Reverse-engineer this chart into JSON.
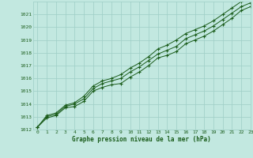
{
  "title": "Graphe pression niveau de la mer (hPa)",
  "background_color": "#c2e8e0",
  "grid_color": "#9ecec6",
  "line_color": "#1a5c1a",
  "text_color": "#1a5c1a",
  "xlim": [
    -0.5,
    23
  ],
  "ylim": [
    1012,
    1022
  ],
  "xticks": [
    0,
    1,
    2,
    3,
    4,
    5,
    6,
    7,
    8,
    9,
    10,
    11,
    12,
    13,
    14,
    15,
    16,
    17,
    18,
    19,
    20,
    21,
    22,
    23
  ],
  "yticks": [
    1012,
    1013,
    1014,
    1015,
    1016,
    1017,
    1018,
    1019,
    1020,
    1021
  ],
  "series": [
    [
      1012.2,
      1012.9,
      1013.1,
      1013.7,
      1013.8,
      1014.2,
      1015.0,
      1015.3,
      1015.5,
      1015.6,
      1016.1,
      1016.5,
      1017.0,
      1017.6,
      1017.8,
      1018.1,
      1018.7,
      1019.0,
      1019.3,
      1019.7,
      1020.2,
      1020.7,
      1021.3,
      1021.6
    ],
    [
      1012.2,
      1013.0,
      1013.2,
      1013.8,
      1014.0,
      1014.4,
      1015.2,
      1015.6,
      1015.8,
      1016.0,
      1016.5,
      1016.9,
      1017.4,
      1017.9,
      1018.2,
      1018.5,
      1019.1,
      1019.4,
      1019.7,
      1020.1,
      1020.6,
      1021.1,
      1021.6,
      1021.9
    ],
    [
      1012.2,
      1013.1,
      1013.3,
      1013.9,
      1014.1,
      1014.6,
      1015.4,
      1015.8,
      1016.0,
      1016.3,
      1016.8,
      1017.2,
      1017.7,
      1018.3,
      1018.6,
      1019.0,
      1019.5,
      1019.8,
      1020.1,
      1020.5,
      1021.0,
      1021.5,
      1022.0,
      1022.2
    ]
  ]
}
